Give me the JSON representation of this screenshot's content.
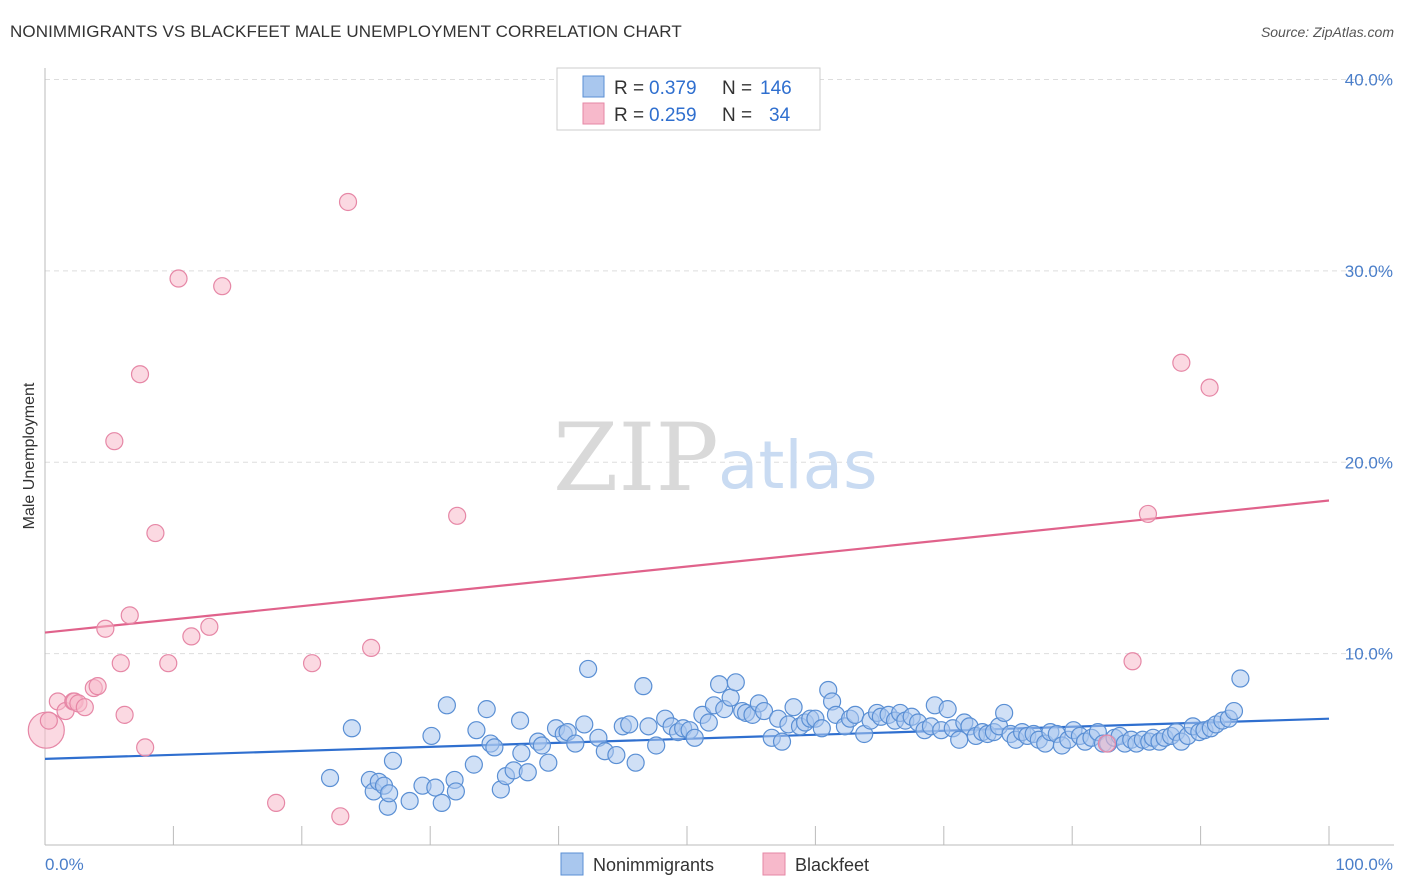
{
  "header": {
    "title": "NONIMMIGRANTS VS BLACKFEET MALE UNEMPLOYMENT CORRELATION CHART",
    "source": "Source: ZipAtlas.com"
  },
  "watermark": {
    "zip": "ZIP",
    "atlas": "atlas"
  },
  "legend": {
    "row1": {
      "r_label": "R =",
      "r_value": "0.379",
      "n_label": "N =",
      "n_value": "146"
    },
    "row2": {
      "r_label": "R =",
      "r_value": "0.259",
      "n_label": "N =",
      "n_value": "34"
    }
  },
  "colors": {
    "blue_fill": "#a9c7ee",
    "blue_stroke": "#5a8fd4",
    "blue_line": "#2f6fcf",
    "pink_fill": "#f7b9cb",
    "pink_stroke": "#e687a6",
    "pink_line": "#e0628b",
    "grid": "#dddddd",
    "tick_text": "#4a7ec9"
  },
  "chart_data": {
    "type": "scatter",
    "title": "NONIMMIGRANTS VS BLACKFEET MALE UNEMPLOYMENT CORRELATION CHART",
    "xlabel": "",
    "ylabel": "Male Unemployment",
    "xlim": [
      0,
      100
    ],
    "ylim": [
      0,
      42
    ],
    "x_tick_labels": [
      "0.0%",
      "100.0%"
    ],
    "y_ticks": [
      10,
      20,
      30,
      40
    ],
    "y_tick_labels": [
      "10.0%",
      "20.0%",
      "30.0%",
      "40.0%"
    ],
    "grid": true,
    "legend_position": "top-center",
    "series": [
      {
        "name": "Nonimmigrants",
        "R": 0.379,
        "N": 146,
        "trend": {
          "x0": 0,
          "y0": 4.5,
          "x1": 100,
          "y1": 6.6
        },
        "points": [
          [
            22.2,
            3.5
          ],
          [
            23.9,
            6.1
          ],
          [
            25.3,
            3.4
          ],
          [
            25.6,
            2.8
          ],
          [
            26.0,
            3.3
          ],
          [
            26.4,
            3.1
          ],
          [
            26.7,
            2.0
          ],
          [
            26.8,
            2.7
          ],
          [
            27.1,
            4.4
          ],
          [
            28.4,
            2.3
          ],
          [
            29.4,
            3.1
          ],
          [
            30.1,
            5.7
          ],
          [
            30.4,
            3.0
          ],
          [
            30.9,
            2.2
          ],
          [
            31.3,
            7.3
          ],
          [
            31.9,
            3.4
          ],
          [
            32.0,
            2.8
          ],
          [
            33.4,
            4.2
          ],
          [
            33.6,
            6.0
          ],
          [
            34.4,
            7.1
          ],
          [
            34.7,
            5.3
          ],
          [
            35.0,
            5.1
          ],
          [
            35.5,
            2.9
          ],
          [
            35.9,
            3.6
          ],
          [
            36.5,
            3.9
          ],
          [
            37.0,
            6.5
          ],
          [
            37.1,
            4.8
          ],
          [
            37.6,
            3.8
          ],
          [
            38.4,
            5.4
          ],
          [
            38.7,
            5.2
          ],
          [
            39.2,
            4.3
          ],
          [
            39.8,
            6.1
          ],
          [
            40.4,
            5.8
          ],
          [
            40.7,
            5.9
          ],
          [
            41.3,
            5.3
          ],
          [
            42.0,
            6.3
          ],
          [
            42.3,
            9.2
          ],
          [
            43.1,
            5.6
          ],
          [
            43.6,
            4.9
          ],
          [
            44.5,
            4.7
          ],
          [
            45.0,
            6.2
          ],
          [
            45.5,
            6.3
          ],
          [
            46.0,
            4.3
          ],
          [
            46.6,
            8.3
          ],
          [
            47.0,
            6.2
          ],
          [
            47.6,
            5.2
          ],
          [
            48.3,
            6.6
          ],
          [
            48.8,
            6.2
          ],
          [
            49.3,
            5.9
          ],
          [
            49.7,
            6.1
          ],
          [
            50.2,
            6.0
          ],
          [
            50.6,
            5.6
          ],
          [
            51.2,
            6.8
          ],
          [
            51.7,
            6.4
          ],
          [
            52.1,
            7.3
          ],
          [
            52.5,
            8.4
          ],
          [
            52.9,
            7.1
          ],
          [
            53.4,
            7.7
          ],
          [
            53.8,
            8.5
          ],
          [
            54.3,
            7.0
          ],
          [
            54.6,
            6.9
          ],
          [
            55.1,
            6.8
          ],
          [
            55.6,
            7.4
          ],
          [
            56.0,
            7.0
          ],
          [
            56.6,
            5.6
          ],
          [
            57.1,
            6.6
          ],
          [
            57.4,
            5.4
          ],
          [
            57.9,
            6.3
          ],
          [
            58.3,
            7.2
          ],
          [
            58.8,
            6.2
          ],
          [
            59.2,
            6.4
          ],
          [
            59.6,
            6.6
          ],
          [
            60.0,
            6.6
          ],
          [
            60.5,
            6.1
          ],
          [
            61.0,
            8.1
          ],
          [
            61.3,
            7.5
          ],
          [
            61.6,
            6.8
          ],
          [
            62.3,
            6.2
          ],
          [
            62.7,
            6.6
          ],
          [
            63.1,
            6.8
          ],
          [
            63.8,
            5.8
          ],
          [
            64.3,
            6.5
          ],
          [
            64.8,
            6.9
          ],
          [
            65.1,
            6.7
          ],
          [
            65.7,
            6.8
          ],
          [
            66.2,
            6.5
          ],
          [
            66.6,
            6.9
          ],
          [
            67.0,
            6.5
          ],
          [
            67.5,
            6.7
          ],
          [
            68.0,
            6.4
          ],
          [
            68.5,
            6.0
          ],
          [
            69.0,
            6.2
          ],
          [
            69.3,
            7.3
          ],
          [
            69.8,
            6.0
          ],
          [
            70.3,
            7.1
          ],
          [
            70.7,
            6.1
          ],
          [
            71.2,
            5.5
          ],
          [
            71.6,
            6.4
          ],
          [
            72.0,
            6.2
          ],
          [
            72.5,
            5.7
          ],
          [
            73.0,
            5.9
          ],
          [
            73.4,
            5.8
          ],
          [
            73.9,
            5.9
          ],
          [
            74.3,
            6.2
          ],
          [
            74.7,
            6.9
          ],
          [
            75.2,
            5.8
          ],
          [
            75.6,
            5.5
          ],
          [
            76.1,
            5.9
          ],
          [
            76.5,
            5.7
          ],
          [
            77.0,
            5.8
          ],
          [
            77.4,
            5.5
          ],
          [
            77.9,
            5.3
          ],
          [
            78.3,
            5.9
          ],
          [
            78.8,
            5.8
          ],
          [
            79.2,
            5.2
          ],
          [
            79.7,
            5.5
          ],
          [
            80.1,
            6.0
          ],
          [
            80.6,
            5.7
          ],
          [
            81.0,
            5.4
          ],
          [
            81.5,
            5.6
          ],
          [
            82.0,
            5.9
          ],
          [
            82.4,
            5.3
          ],
          [
            82.8,
            5.3
          ],
          [
            83.3,
            5.6
          ],
          [
            83.7,
            5.7
          ],
          [
            84.1,
            5.3
          ],
          [
            84.6,
            5.5
          ],
          [
            85.0,
            5.3
          ],
          [
            85.5,
            5.5
          ],
          [
            86.0,
            5.4
          ],
          [
            86.3,
            5.6
          ],
          [
            86.8,
            5.4
          ],
          [
            87.2,
            5.6
          ],
          [
            87.7,
            5.7
          ],
          [
            88.1,
            5.9
          ],
          [
            88.5,
            5.4
          ],
          [
            89.0,
            5.7
          ],
          [
            89.4,
            6.2
          ],
          [
            89.9,
            5.9
          ],
          [
            90.3,
            6.0
          ],
          [
            90.8,
            6.1
          ],
          [
            91.2,
            6.3
          ],
          [
            91.7,
            6.5
          ],
          [
            92.2,
            6.6
          ],
          [
            92.6,
            7.0
          ],
          [
            93.1,
            8.7
          ]
        ]
      },
      {
        "name": "Blackfeet",
        "R": 0.259,
        "N": 34,
        "trend": {
          "x0": 0,
          "y0": 11.1,
          "x1": 100,
          "y1": 18.0
        },
        "points": [
          [
            0.1,
            6.0
          ],
          [
            0.3,
            6.5
          ],
          [
            1.0,
            7.5
          ],
          [
            1.6,
            7.0
          ],
          [
            2.2,
            7.5
          ],
          [
            2.3,
            7.5
          ],
          [
            2.6,
            7.4
          ],
          [
            3.1,
            7.2
          ],
          [
            3.8,
            8.2
          ],
          [
            4.1,
            8.3
          ],
          [
            4.7,
            11.3
          ],
          [
            5.4,
            21.1
          ],
          [
            5.9,
            9.5
          ],
          [
            6.2,
            6.8
          ],
          [
            6.6,
            12.0
          ],
          [
            7.4,
            24.6
          ],
          [
            7.8,
            5.1
          ],
          [
            8.6,
            16.3
          ],
          [
            9.6,
            9.5
          ],
          [
            10.4,
            29.6
          ],
          [
            11.4,
            10.9
          ],
          [
            12.8,
            11.4
          ],
          [
            13.8,
            29.2
          ],
          [
            18.0,
            2.2
          ],
          [
            20.8,
            9.5
          ],
          [
            23.0,
            1.5
          ],
          [
            23.6,
            33.6
          ],
          [
            25.4,
            10.3
          ],
          [
            32.1,
            17.2
          ],
          [
            82.7,
            5.3
          ],
          [
            84.7,
            9.6
          ],
          [
            85.9,
            17.3
          ],
          [
            88.5,
            25.2
          ],
          [
            90.7,
            23.9
          ]
        ]
      }
    ]
  }
}
